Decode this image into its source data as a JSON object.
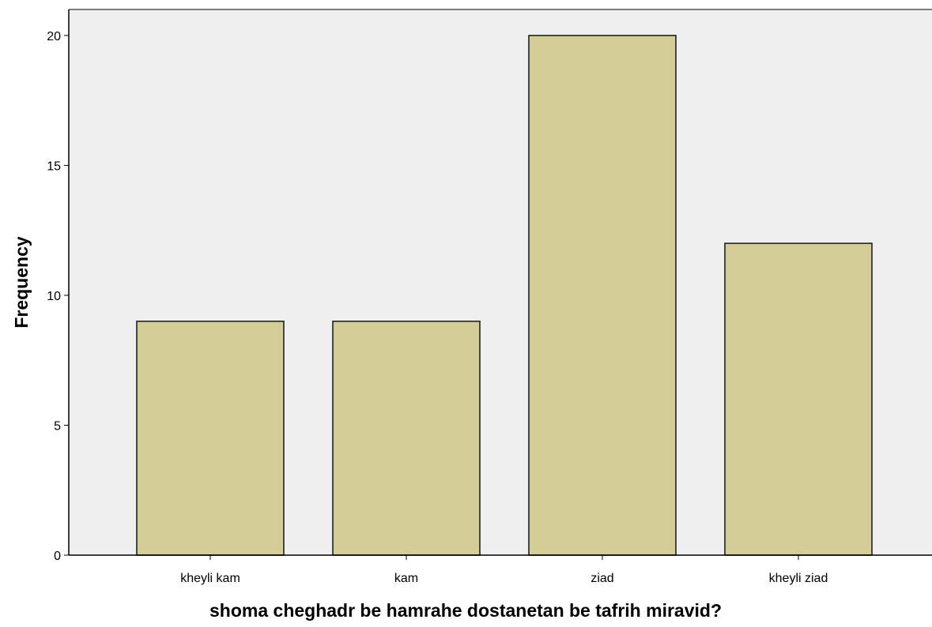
{
  "chart_data": {
    "type": "bar",
    "title": "",
    "xlabel": "shoma cheghadr be hamrahe dostanetan be tafrih miravid?",
    "ylabel": "Frequency",
    "categories": [
      "kheyli kam",
      "kam",
      "ziad",
      "kheyli ziad"
    ],
    "values": [
      9,
      9,
      20,
      12
    ],
    "ylim": [
      0,
      21
    ],
    "yticks": [
      0,
      5,
      10,
      15,
      20
    ],
    "grid": false,
    "legend": "none",
    "colors": {
      "plot_background": "#efefef",
      "bar_fill": "#d3ce97",
      "bar_stroke": "#222222",
      "axis": "#000000"
    }
  }
}
